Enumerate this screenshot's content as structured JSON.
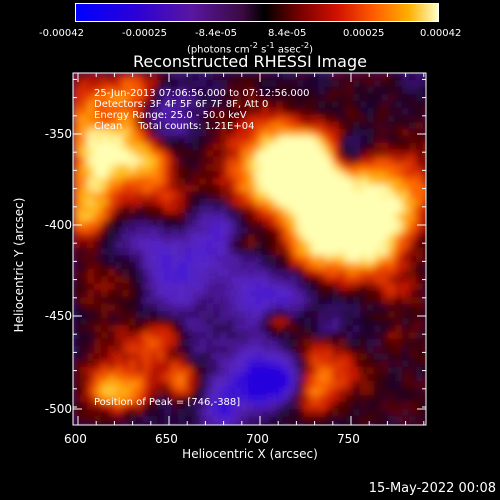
{
  "colorbar": {
    "ticks": [
      "-0.00042",
      "-0.00025",
      "-8.4e-05",
      "8.4e-05",
      "0.00025",
      "0.00042"
    ],
    "units_html": "(photons cm<sup>-2</sup> s<sup>-1</sup> asec<sup>-2</sup>)"
  },
  "plot": {
    "title": "Reconstructed RHESSI Image",
    "annotations": [
      "25-Jun-2013 07:06:56.000 to 07:12:56.000",
      "Detectors: 3F 4F 5F 6F 7F 8F, Att 0",
      "Energy Range: 25.0 - 50.0 keV",
      "Clean     Total counts: 1.21E+04"
    ],
    "peak_label": "Position of Peak = [746,-388]",
    "x_ticks": [
      "600",
      "650",
      "700",
      "750"
    ],
    "y_ticks": [
      "-350",
      "-400",
      "-450",
      "-500"
    ],
    "x_label": "Heliocentric X (arcsec)",
    "y_label": "Heliocentric Y (arcsec)"
  },
  "footer": {
    "timestamp": "15-May-2022 00:08"
  }
}
